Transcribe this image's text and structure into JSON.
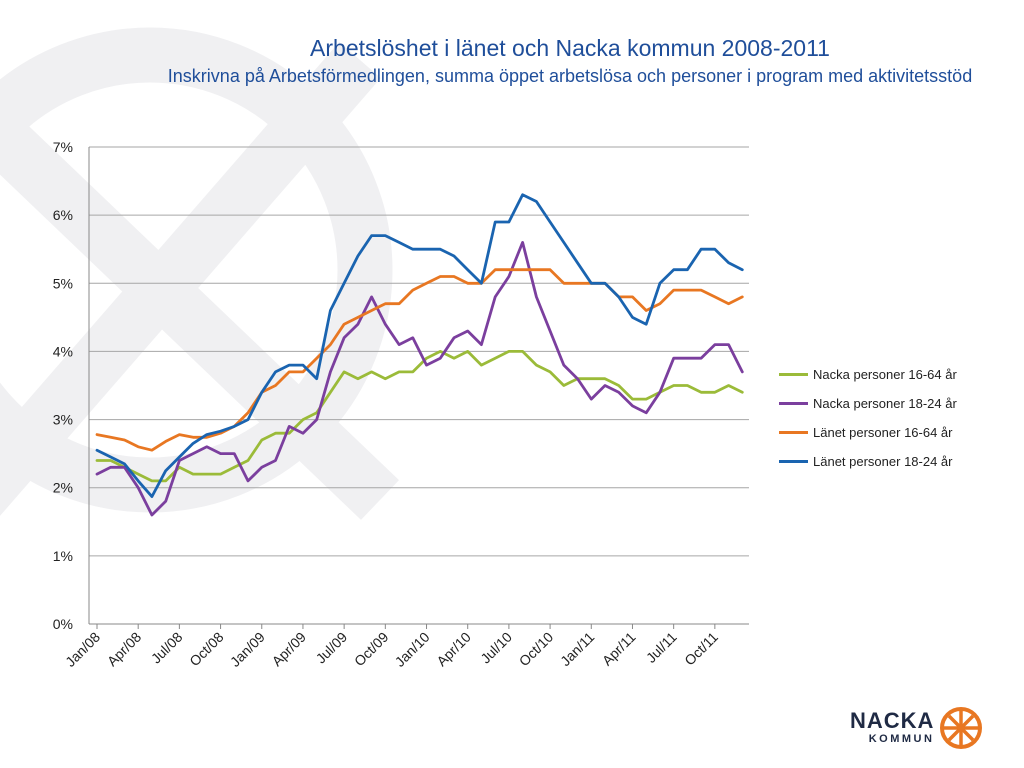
{
  "header": {
    "title": "Arbetslöshet i länet och Nacka kommun 2008-2011",
    "subtitle": "Inskrivna på Arbetsförmedlingen, summa öppet arbetslösa och personer i program med aktivitetsstöd"
  },
  "logo": {
    "line1": "NACKA",
    "line2": "KOMMUN",
    "color": "#e87722"
  },
  "chart_data": {
    "type": "line",
    "title": "Arbetslöshet i länet och Nacka kommun 2008-2011",
    "subtitle": "Inskrivna på Arbetsförmedlingen, summa öppet arbetslösa och personer i program med aktivitetsstöd",
    "xlabel": "",
    "ylabel": "",
    "ylim": [
      0,
      7
    ],
    "yticks": [
      "0%",
      "1%",
      "2%",
      "3%",
      "4%",
      "5%",
      "6%",
      "7%"
    ],
    "xticks": [
      "Jan/08",
      "Apr/08",
      "Jul/08",
      "Oct/08",
      "Jan/09",
      "Apr/09",
      "Jul/09",
      "Oct/09",
      "Jan/10",
      "Apr/10",
      "Jul/10",
      "Oct/10",
      "Jan/11",
      "Apr/11",
      "Jul/11",
      "Oct/11"
    ],
    "grid": "horizontal",
    "legend_position": "right",
    "series": [
      {
        "name": "Nacka personer 16-64 år",
        "color": "#9bbb39",
        "values": [
          2.4,
          2.4,
          2.3,
          2.2,
          2.1,
          2.1,
          2.3,
          2.2,
          2.2,
          2.2,
          2.3,
          2.4,
          2.7,
          2.8,
          2.8,
          3.0,
          3.1,
          3.4,
          3.7,
          3.6,
          3.7,
          3.6,
          3.7,
          3.7,
          3.9,
          4.0,
          3.9,
          4.0,
          3.8,
          3.9,
          4.0,
          4.0,
          3.8,
          3.7,
          3.5,
          3.6,
          3.6,
          3.6,
          3.5,
          3.3,
          3.3,
          3.4,
          3.5,
          3.5,
          3.4,
          3.4,
          3.5,
          3.4
        ]
      },
      {
        "name": "Nacka personer 18-24 år",
        "color": "#7b3f9e",
        "values": [
          2.2,
          2.3,
          2.3,
          2.0,
          1.6,
          1.8,
          2.4,
          2.5,
          2.6,
          2.5,
          2.5,
          2.1,
          2.3,
          2.4,
          2.9,
          2.8,
          3.0,
          3.7,
          4.2,
          4.4,
          4.8,
          4.4,
          4.1,
          4.2,
          3.8,
          3.9,
          4.2,
          4.3,
          4.1,
          4.8,
          5.1,
          5.6,
          4.8,
          4.3,
          3.8,
          3.6,
          3.3,
          3.5,
          3.4,
          3.2,
          3.1,
          3.4,
          3.9,
          3.9,
          3.9,
          4.1,
          4.1,
          3.7
        ]
      },
      {
        "name": "Länet personer 16-64 år",
        "color": "#e87722",
        "values": [
          2.78,
          2.74,
          2.7,
          2.6,
          2.55,
          2.68,
          2.78,
          2.74,
          2.74,
          2.8,
          2.9,
          3.1,
          3.4,
          3.5,
          3.7,
          3.7,
          3.9,
          4.1,
          4.4,
          4.5,
          4.6,
          4.7,
          4.7,
          4.9,
          5.0,
          5.1,
          5.1,
          5.0,
          5.0,
          5.2,
          5.2,
          5.2,
          5.2,
          5.2,
          5.0,
          5.0,
          5.0,
          5.0,
          4.8,
          4.8,
          4.6,
          4.7,
          4.9,
          4.9,
          4.9,
          4.8,
          4.7,
          4.8
        ]
      },
      {
        "name": "Länet personer 18-24 år",
        "color": "#1a64b0",
        "values": [
          2.55,
          2.45,
          2.35,
          2.1,
          1.87,
          2.25,
          2.45,
          2.65,
          2.78,
          2.83,
          2.9,
          3.0,
          3.4,
          3.7,
          3.8,
          3.8,
          3.6,
          4.6,
          5.0,
          5.4,
          5.7,
          5.7,
          5.6,
          5.5,
          5.5,
          5.5,
          5.4,
          5.2,
          5.0,
          5.9,
          5.9,
          6.3,
          6.2,
          5.9,
          5.6,
          5.3,
          5.0,
          5.0,
          4.8,
          4.5,
          4.4,
          5.0,
          5.2,
          5.2,
          5.5,
          5.5,
          5.3,
          5.2
        ]
      }
    ]
  }
}
